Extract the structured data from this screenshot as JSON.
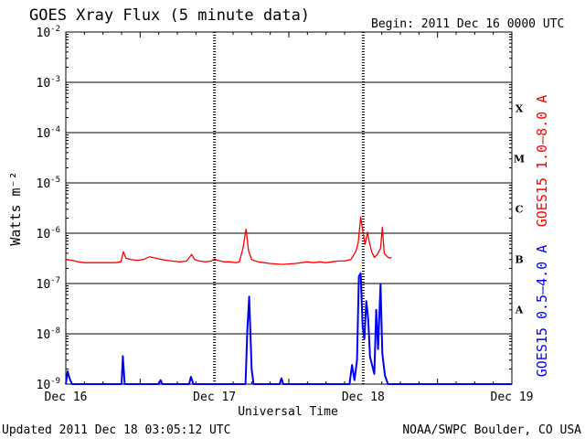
{
  "header": {
    "title": "GOES Xray Flux (5 minute data)",
    "begin": "Begin:  2011 Dec 16 0000 UTC"
  },
  "footer": {
    "updated": "Updated 2011 Dec 18 03:05:12 UTC",
    "credit": "NOAA/SWPC Boulder, CO USA"
  },
  "colors": {
    "long_channel": "#ff0000",
    "short_channel": "#0000ff",
    "axis": "#000000"
  },
  "chart_data": {
    "type": "line",
    "title": "GOES Xray Flux (5 minute data)",
    "xlabel": "Universal Time",
    "ylabel": "Watts m⁻²",
    "yscale": "log",
    "ylim": [
      1e-09,
      0.01
    ],
    "xlim": [
      0,
      72
    ],
    "x_unit": "hours since 2011 Dec 16 0000 UTC",
    "x_tick_positions": [
      0,
      24,
      48,
      72
    ],
    "x_tick_labels": [
      "Dec 16",
      "Dec 17",
      "Dec 18",
      "Dec 19"
    ],
    "y_tick_labels": [
      {
        "base": "10",
        "exp": "-9",
        "value": 1e-09
      },
      {
        "base": "10",
        "exp": "-8",
        "value": 1e-08
      },
      {
        "base": "10",
        "exp": "-7",
        "value": 1e-07
      },
      {
        "base": "10",
        "exp": "-6",
        "value": 1e-06
      },
      {
        "base": "10",
        "exp": "-5",
        "value": 1e-05
      },
      {
        "base": "10",
        "exp": "-4",
        "value": 0.0001
      },
      {
        "base": "10",
        "exp": "-3",
        "value": 0.001
      },
      {
        "base": "10",
        "exp": "-2",
        "value": 0.01
      }
    ],
    "flare_classes": [
      {
        "label": "X",
        "value": 0.000316
      },
      {
        "label": "M",
        "value": 3.16e-05
      },
      {
        "label": "C",
        "value": 3.16e-06
      },
      {
        "label": "B",
        "value": 3.16e-07
      },
      {
        "label": "A",
        "value": 3.16e-08
      }
    ],
    "grid": true,
    "series": [
      {
        "name": "GOES15 1.0–8.0 A",
        "color": "#ff0000",
        "points": [
          [
            0,
            3e-07
          ],
          [
            1,
            2.9e-07
          ],
          [
            2,
            2.7e-07
          ],
          [
            3,
            2.6e-07
          ],
          [
            4,
            2.6e-07
          ],
          [
            5,
            2.6e-07
          ],
          [
            6,
            2.6e-07
          ],
          [
            7,
            2.6e-07
          ],
          [
            8,
            2.6e-07
          ],
          [
            8.9,
            2.7e-07
          ],
          [
            9.3,
            4.3e-07
          ],
          [
            9.7,
            3.2e-07
          ],
          [
            10.5,
            3e-07
          ],
          [
            11.5,
            2.9e-07
          ],
          [
            12.5,
            3e-07
          ],
          [
            13.5,
            3.4e-07
          ],
          [
            14.5,
            3.2e-07
          ],
          [
            15.5,
            3e-07
          ],
          [
            17,
            2.8e-07
          ],
          [
            18.5,
            2.7e-07
          ],
          [
            19.5,
            2.8e-07
          ],
          [
            20.3,
            3.8e-07
          ],
          [
            20.8,
            3e-07
          ],
          [
            21.5,
            2.8e-07
          ],
          [
            22.5,
            2.7e-07
          ],
          [
            23.5,
            2.8e-07
          ],
          [
            24,
            3.1e-07
          ],
          [
            24.5,
            2.9e-07
          ],
          [
            25.5,
            2.7e-07
          ],
          [
            26.5,
            2.7e-07
          ],
          [
            27.5,
            2.6e-07
          ],
          [
            28,
            2.7e-07
          ],
          [
            28.6,
            5e-07
          ],
          [
            29.1,
            1.2e-06
          ],
          [
            29.5,
            4.5e-07
          ],
          [
            30,
            3e-07
          ],
          [
            31,
            2.7e-07
          ],
          [
            32,
            2.6e-07
          ],
          [
            33,
            2.5e-07
          ],
          [
            34,
            2.45e-07
          ],
          [
            35,
            2.4e-07
          ],
          [
            36,
            2.45e-07
          ],
          [
            37,
            2.5e-07
          ],
          [
            38,
            2.6e-07
          ],
          [
            39,
            2.7e-07
          ],
          [
            40,
            2.6e-07
          ],
          [
            41,
            2.7e-07
          ],
          [
            42,
            2.6e-07
          ],
          [
            43,
            2.7e-07
          ],
          [
            44,
            2.8e-07
          ],
          [
            45,
            2.8e-07
          ],
          [
            46,
            3e-07
          ],
          [
            46.8,
            4.3e-07
          ],
          [
            47.2,
            6.5e-07
          ],
          [
            47.6,
            2.1e-06
          ],
          [
            48,
            1e-06
          ],
          [
            48.3,
            6e-07
          ],
          [
            48.7,
            1.05e-06
          ],
          [
            49,
            6.5e-07
          ],
          [
            49.4,
            4.2e-07
          ],
          [
            49.8,
            3.3e-07
          ],
          [
            50.3,
            3.8e-07
          ],
          [
            50.8,
            5e-07
          ],
          [
            51.1,
            1.3e-06
          ],
          [
            51.4,
            4e-07
          ],
          [
            51.8,
            3.5e-07
          ],
          [
            52.2,
            3.2e-07
          ],
          [
            52.6,
            3.3e-07
          ]
        ]
      },
      {
        "name": "GOES15 0.5–4.0 A",
        "color": "#0000ff",
        "points": [
          [
            0,
            1e-09
          ],
          [
            0.3,
            1.8e-09
          ],
          [
            0.6,
            1.3e-09
          ],
          [
            1,
            1e-09
          ],
          [
            9,
            1e-09
          ],
          [
            9.2,
            3.6e-09
          ],
          [
            9.5,
            1e-09
          ],
          [
            15,
            1e-09
          ],
          [
            15.3,
            1.2e-09
          ],
          [
            15.6,
            1e-09
          ],
          [
            19.9,
            1e-09
          ],
          [
            20.2,
            1.4e-09
          ],
          [
            20.6,
            1e-09
          ],
          [
            29,
            1e-09
          ],
          [
            29.3,
            1.2e-08
          ],
          [
            29.6,
            5.5e-08
          ],
          [
            30,
            2e-09
          ],
          [
            30.3,
            1e-09
          ],
          [
            34.5,
            1e-09
          ],
          [
            34.8,
            1.3e-09
          ],
          [
            35.1,
            1e-09
          ],
          [
            45.8,
            1e-09
          ],
          [
            46.2,
            2.4e-09
          ],
          [
            46.6,
            1.2e-09
          ],
          [
            47,
            3e-09
          ],
          [
            47.3,
            1.4e-07
          ],
          [
            47.6,
            1.6e-07
          ],
          [
            47.9,
            1.4e-08
          ],
          [
            48.2,
            8e-09
          ],
          [
            48.5,
            4.5e-08
          ],
          [
            48.8,
            2e-08
          ],
          [
            49.1,
            3.5e-09
          ],
          [
            49.4,
            2.5e-09
          ],
          [
            49.8,
            1.6e-09
          ],
          [
            50.1,
            3e-08
          ],
          [
            50.4,
            5e-09
          ],
          [
            50.8,
            9.5e-08
          ],
          [
            51.1,
            4e-09
          ],
          [
            51.5,
            1.5e-09
          ],
          [
            52,
            1e-09
          ],
          [
            53,
            1e-09
          ],
          [
            72,
            1e-09
          ]
        ]
      }
    ]
  }
}
